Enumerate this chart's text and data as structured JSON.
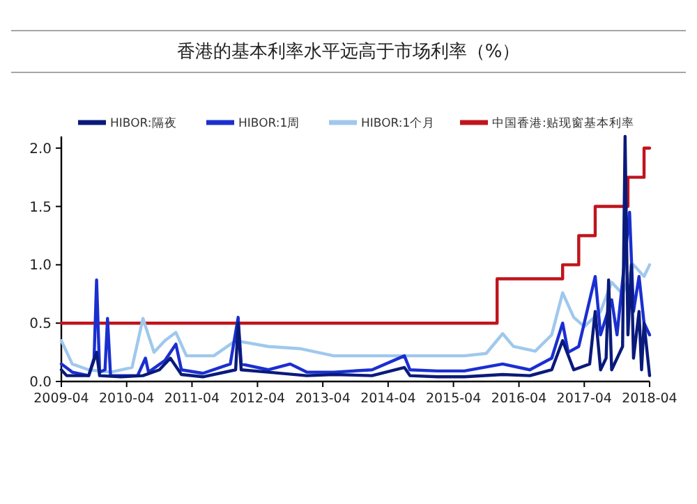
{
  "chart_data": {
    "type": "line",
    "title": "香港的基本利率水平远高于市场利率（%）",
    "xlim": [
      "2009-04",
      "2018-04"
    ],
    "xticks": [
      "2009-04",
      "2010-04",
      "2011-04",
      "2012-04",
      "2013-04",
      "2014-04",
      "2015-04",
      "2016-04",
      "2017-04",
      "2018-04"
    ],
    "ylim": [
      0,
      2.1
    ],
    "yticks": [
      {
        "value": 0,
        "label": "0.0"
      },
      {
        "value": 0.5,
        "label": "0.5"
      },
      {
        "value": 1,
        "label": "1.0"
      },
      {
        "value": 1.5,
        "label": "1.5"
      },
      {
        "value": 2,
        "label": "2.0"
      }
    ],
    "grid": false,
    "legend": "top",
    "marker": "none",
    "line_style": "solid",
    "series": [
      {
        "name": "HIBOR:隔夜",
        "color": "#0a1a7a",
        "x": [
          "2009-04",
          "2009-05",
          "2009-09",
          "2009-10-15",
          "2009-11",
          "2010-03",
          "2010-07",
          "2010-10",
          "2010-12",
          "2011-02",
          "2011-06",
          "2011-12-01",
          "2011-12-15",
          "2012-01",
          "2012-06",
          "2013-01",
          "2013-06",
          "2014-01",
          "2014-07",
          "2014-08",
          "2015-01",
          "2015-06",
          "2016-01",
          "2016-06",
          "2016-10",
          "2016-12",
          "2017-02",
          "2017-05",
          "2017-06",
          "2017-07",
          "2017-08-01",
          "2017-08-15",
          "2017-09",
          "2017-11-01",
          "2017-11-15",
          "2017-12-01",
          "2017-12-20",
          "2018-01",
          "2018-02-01",
          "2018-02-15",
          "2018-03",
          "2018-04"
        ],
        "values": [
          0.1,
          0.05,
          0.05,
          0.25,
          0.05,
          0.04,
          0.05,
          0.1,
          0.2,
          0.06,
          0.04,
          0.1,
          0.5,
          0.1,
          0.08,
          0.05,
          0.06,
          0.05,
          0.12,
          0.05,
          0.04,
          0.04,
          0.06,
          0.05,
          0.1,
          0.35,
          0.1,
          0.15,
          0.6,
          0.1,
          0.2,
          0.87,
          0.1,
          0.3,
          2.1,
          0.4,
          1.0,
          0.2,
          0.6,
          0.1,
          0.5,
          0.05
        ]
      },
      {
        "name": "HIBOR:1周",
        "color": "#1a2fd0",
        "x": [
          "2009-04",
          "2009-06",
          "2009-09",
          "2009-10-01",
          "2009-10-15",
          "2009-11",
          "2009-12-01",
          "2009-12-15",
          "2010-01",
          "2010-06",
          "2010-07-15",
          "2010-08",
          "2010-11",
          "2011-01",
          "2011-02",
          "2011-06",
          "2011-11",
          "2011-12-15",
          "2012-01",
          "2012-06",
          "2012-10",
          "2013-01",
          "2013-06",
          "2014-01",
          "2014-07",
          "2014-08",
          "2015-01",
          "2015-06",
          "2016-01",
          "2016-06",
          "2016-10",
          "2016-12",
          "2017-01",
          "2017-03",
          "2017-06",
          "2017-07",
          "2017-09",
          "2017-10",
          "2017-12-10",
          "2018-01",
          "2018-02",
          "2018-03",
          "2018-04"
        ],
        "values": [
          0.15,
          0.08,
          0.05,
          0.2,
          0.87,
          0.08,
          0.1,
          0.54,
          0.05,
          0.05,
          0.2,
          0.08,
          0.18,
          0.32,
          0.1,
          0.07,
          0.15,
          0.55,
          0.15,
          0.1,
          0.15,
          0.08,
          0.08,
          0.1,
          0.22,
          0.1,
          0.09,
          0.09,
          0.15,
          0.1,
          0.2,
          0.5,
          0.25,
          0.3,
          0.9,
          0.4,
          0.7,
          0.4,
          1.45,
          0.6,
          0.9,
          0.5,
          0.4
        ]
      },
      {
        "name": "HIBOR:1个月",
        "color": "#9fc8ec",
        "x": [
          "2009-04",
          "2009-06",
          "2009-09",
          "2010-01",
          "2010-05",
          "2010-07",
          "2010-09",
          "2010-11",
          "2011-01",
          "2011-03",
          "2011-08",
          "2011-12",
          "2012-06",
          "2012-12",
          "2013-06",
          "2014-06",
          "2015-06",
          "2015-10",
          "2016-01",
          "2016-03",
          "2016-07",
          "2016-10",
          "2016-12",
          "2017-02",
          "2017-04",
          "2017-07",
          "2017-09",
          "2017-11",
          "2018-01",
          "2018-03",
          "2018-04"
        ],
        "values": [
          0.35,
          0.15,
          0.1,
          0.08,
          0.12,
          0.54,
          0.25,
          0.35,
          0.42,
          0.22,
          0.22,
          0.35,
          0.3,
          0.28,
          0.22,
          0.22,
          0.22,
          0.24,
          0.41,
          0.3,
          0.26,
          0.4,
          0.76,
          0.55,
          0.47,
          0.6,
          0.85,
          0.75,
          1.0,
          0.9,
          1.0
        ]
      },
      {
        "name": "中国香港:贴现窗基本利率",
        "type": "step",
        "color": "#c0141c",
        "x": [
          "2009-04",
          "2015-12",
          "2016-12",
          "2017-03",
          "2017-06",
          "2017-12",
          "2018-03",
          "2018-04"
        ],
        "values": [
          0.5,
          0.88,
          1.0,
          1.25,
          1.5,
          1.75,
          2.0,
          2.0
        ]
      }
    ]
  }
}
